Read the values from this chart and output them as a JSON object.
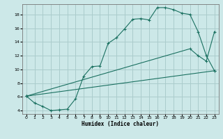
{
  "xlabel": "Humidex (Indice chaleur)",
  "bg_color": "#cce8e8",
  "grid_color": "#aacccc",
  "line_color": "#1a7060",
  "xlim": [
    -0.5,
    23.5
  ],
  "ylim": [
    3.5,
    19.5
  ],
  "xticks": [
    0,
    1,
    2,
    3,
    4,
    5,
    6,
    7,
    8,
    9,
    10,
    11,
    12,
    13,
    14,
    15,
    16,
    17,
    18,
    19,
    20,
    21,
    22,
    23
  ],
  "yticks": [
    4,
    6,
    8,
    10,
    12,
    14,
    16,
    18
  ],
  "line1_x": [
    0,
    1,
    2,
    3,
    4,
    5,
    6,
    7,
    8,
    9,
    10,
    11,
    12,
    13,
    14,
    15,
    16,
    17,
    18,
    19,
    20,
    21,
    22,
    23
  ],
  "line1_y": [
    6.1,
    5.1,
    4.6,
    4.0,
    4.1,
    4.2,
    5.7,
    9.0,
    10.4,
    10.5,
    13.8,
    14.6,
    15.9,
    17.3,
    17.4,
    17.2,
    19.0,
    19.0,
    18.7,
    18.2,
    18.0,
    15.5,
    12.0,
    9.8
  ],
  "line2_x": [
    0,
    23
  ],
  "line2_y": [
    6.1,
    9.8
  ],
  "line3_x": [
    0,
    20,
    21,
    22,
    23
  ],
  "line3_y": [
    6.1,
    13.0,
    12.0,
    11.2,
    15.5
  ]
}
